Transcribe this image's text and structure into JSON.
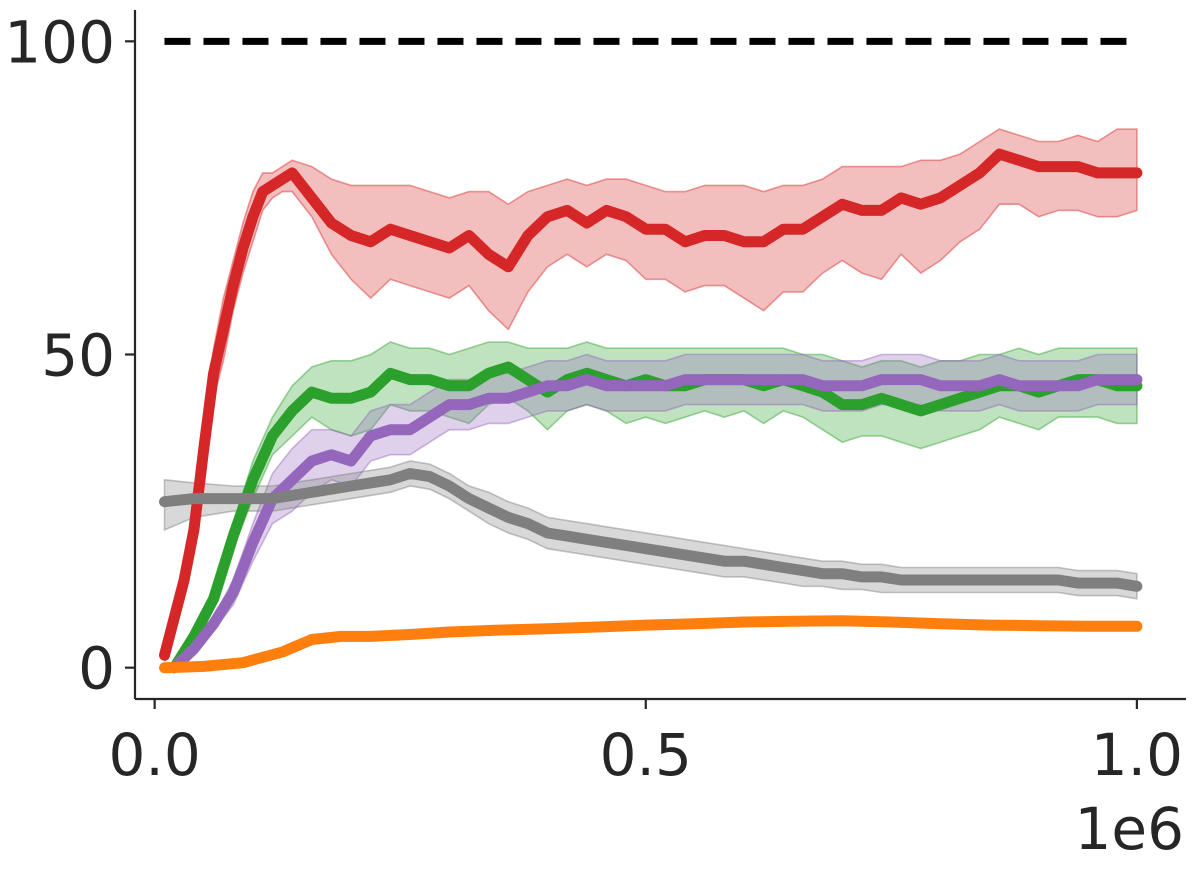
{
  "chart_data": {
    "type": "line",
    "title": "",
    "xlabel": "",
    "ylabel": "",
    "x_offset_label": "1e6",
    "xlim": [
      -0.02,
      1.05
    ],
    "ylim": [
      -5,
      105
    ],
    "x_ticks": [
      0.0,
      0.5,
      1.0
    ],
    "x_tick_labels": [
      "0.0",
      "0.5",
      "1.0"
    ],
    "y_ticks": [
      0,
      50,
      100
    ],
    "y_tick_labels": [
      "0",
      "50",
      "100"
    ],
    "grid": false,
    "reference_line": {
      "y": 100,
      "x_range": [
        0.01,
        1.0
      ],
      "color": "#000000",
      "style": "dashed"
    },
    "series": [
      {
        "color": "#d62728",
        "x": [
          0.01,
          0.02,
          0.03,
          0.04,
          0.05,
          0.06,
          0.07,
          0.08,
          0.09,
          0.1,
          0.11,
          0.12,
          0.13,
          0.14,
          0.16,
          0.18,
          0.2,
          0.22,
          0.24,
          0.26,
          0.28,
          0.3,
          0.32,
          0.34,
          0.36,
          0.38,
          0.4,
          0.42,
          0.44,
          0.46,
          0.48,
          0.5,
          0.52,
          0.54,
          0.56,
          0.58,
          0.6,
          0.62,
          0.64,
          0.66,
          0.68,
          0.7,
          0.72,
          0.74,
          0.76,
          0.78,
          0.8,
          0.82,
          0.84,
          0.86,
          0.88,
          0.9,
          0.92,
          0.94,
          0.96,
          0.98,
          1.0
        ],
        "y": [
          2,
          8,
          14,
          22,
          35,
          47,
          54,
          61,
          67,
          72,
          76,
          77,
          78,
          79,
          75,
          71,
          69,
          68,
          70,
          69,
          68,
          67,
          69,
          66,
          64,
          69,
          72,
          73,
          71,
          73,
          72,
          70,
          70,
          68,
          69,
          69,
          68,
          68,
          70,
          70,
          72,
          74,
          73,
          73,
          75,
          74,
          75,
          77,
          79,
          82,
          81,
          80,
          80,
          80,
          79,
          79,
          79
        ],
        "upper": [
          3,
          10,
          17,
          25,
          39,
          51,
          59,
          65,
          71,
          76,
          79,
          79,
          80,
          81,
          80,
          78,
          77,
          77,
          77,
          77,
          76,
          75,
          76,
          76,
          74,
          76,
          77,
          78,
          77,
          78,
          78,
          77,
          76,
          76,
          77,
          77,
          77,
          76,
          77,
          77,
          78,
          80,
          80,
          80,
          80,
          81,
          81,
          82,
          84,
          86,
          85,
          84,
          84,
          85,
          84,
          86,
          86
        ],
        "lower": [
          1,
          6,
          11,
          19,
          31,
          43,
          49,
          57,
          63,
          68,
          73,
          75,
          76,
          76,
          72,
          66,
          62,
          59,
          62,
          61,
          60,
          59,
          61,
          57,
          54,
          60,
          64,
          66,
          64,
          66,
          65,
          62,
          62,
          60,
          61,
          61,
          59,
          57,
          60,
          60,
          63,
          65,
          63,
          62,
          66,
          63,
          65,
          68,
          70,
          74,
          74,
          72,
          73,
          73,
          72,
          72,
          73
        ]
      },
      {
        "color": "#2ca02c",
        "x": [
          0.02,
          0.04,
          0.06,
          0.08,
          0.1,
          0.12,
          0.14,
          0.16,
          0.18,
          0.2,
          0.22,
          0.24,
          0.26,
          0.28,
          0.3,
          0.32,
          0.34,
          0.36,
          0.38,
          0.4,
          0.42,
          0.44,
          0.46,
          0.48,
          0.5,
          0.52,
          0.54,
          0.56,
          0.58,
          0.6,
          0.62,
          0.64,
          0.66,
          0.68,
          0.7,
          0.72,
          0.74,
          0.76,
          0.78,
          0.8,
          0.82,
          0.84,
          0.86,
          0.88,
          0.9,
          0.92,
          0.94,
          0.96,
          0.98,
          1.0
        ],
        "y": [
          0,
          5,
          11,
          21,
          30,
          37,
          41,
          44,
          43,
          43,
          44,
          47,
          46,
          46,
          45,
          45,
          47,
          48,
          46,
          44,
          46,
          47,
          46,
          45,
          46,
          45,
          45,
          46,
          46,
          46,
          45,
          46,
          45,
          44,
          42,
          42,
          43,
          42,
          41,
          42,
          43,
          44,
          45,
          45,
          44,
          45,
          46,
          46,
          45,
          45
        ],
        "upper": [
          1,
          6,
          12,
          23,
          33,
          40,
          45,
          48,
          49,
          49,
          50,
          52,
          51,
          51,
          50,
          51,
          52,
          52,
          51,
          51,
          51,
          52,
          51,
          51,
          51,
          51,
          51,
          51,
          51,
          51,
          51,
          51,
          50,
          50,
          49,
          48,
          49,
          49,
          48,
          49,
          49,
          50,
          50,
          51,
          50,
          51,
          51,
          51,
          51,
          51
        ],
        "lower": [
          0,
          4,
          10,
          19,
          27,
          34,
          37,
          40,
          38,
          37,
          38,
          42,
          41,
          41,
          40,
          39,
          42,
          43,
          41,
          38,
          41,
          42,
          41,
          39,
          40,
          39,
          40,
          41,
          40,
          41,
          39,
          41,
          40,
          38,
          36,
          37,
          37,
          36,
          35,
          36,
          37,
          38,
          40,
          39,
          38,
          40,
          40,
          40,
          39,
          39
        ]
      },
      {
        "color": "#9467bd",
        "x": [
          0.02,
          0.04,
          0.06,
          0.08,
          0.1,
          0.12,
          0.14,
          0.16,
          0.18,
          0.2,
          0.22,
          0.24,
          0.26,
          0.28,
          0.3,
          0.32,
          0.34,
          0.36,
          0.38,
          0.4,
          0.42,
          0.44,
          0.46,
          0.48,
          0.5,
          0.52,
          0.54,
          0.56,
          0.58,
          0.6,
          0.62,
          0.64,
          0.66,
          0.68,
          0.7,
          0.72,
          0.74,
          0.76,
          0.78,
          0.8,
          0.82,
          0.84,
          0.86,
          0.88,
          0.9,
          0.92,
          0.94,
          0.96,
          0.98,
          1.0
        ],
        "y": [
          0,
          3,
          7,
          12,
          20,
          27,
          30,
          33,
          34,
          33,
          37,
          38,
          38,
          40,
          42,
          42,
          43,
          43,
          44,
          45,
          45,
          46,
          45,
          45,
          45,
          45,
          46,
          46,
          46,
          46,
          46,
          46,
          46,
          45,
          45,
          45,
          46,
          46,
          46,
          45,
          45,
          45,
          46,
          45,
          45,
          45,
          45,
          46,
          46,
          46
        ],
        "upper": [
          1,
          4,
          8,
          14,
          23,
          31,
          35,
          38,
          38,
          37,
          41,
          42,
          42,
          44,
          46,
          46,
          47,
          47,
          48,
          49,
          49,
          50,
          49,
          49,
          49,
          49,
          50,
          50,
          50,
          50,
          50,
          50,
          50,
          49,
          49,
          49,
          50,
          50,
          50,
          49,
          49,
          49,
          50,
          49,
          49,
          49,
          49,
          50,
          50,
          50
        ],
        "lower": [
          0,
          2,
          6,
          10,
          17,
          23,
          25,
          28,
          30,
          29,
          33,
          34,
          34,
          36,
          38,
          38,
          39,
          39,
          40,
          41,
          41,
          42,
          41,
          41,
          41,
          41,
          42,
          42,
          42,
          42,
          42,
          42,
          42,
          41,
          41,
          41,
          42,
          42,
          42,
          41,
          41,
          41,
          42,
          41,
          41,
          41,
          41,
          42,
          42,
          42
        ]
      },
      {
        "color": "#7f7f7f",
        "x": [
          0.01,
          0.04,
          0.08,
          0.12,
          0.16,
          0.2,
          0.24,
          0.26,
          0.28,
          0.3,
          0.32,
          0.34,
          0.36,
          0.38,
          0.4,
          0.42,
          0.44,
          0.46,
          0.48,
          0.5,
          0.52,
          0.54,
          0.56,
          0.58,
          0.6,
          0.62,
          0.64,
          0.66,
          0.68,
          0.7,
          0.72,
          0.74,
          0.76,
          0.78,
          0.8,
          0.82,
          0.84,
          0.86,
          0.88,
          0.9,
          0.92,
          0.94,
          0.96,
          0.98,
          1.0
        ],
        "y": [
          26.5,
          27,
          27,
          27,
          28,
          29,
          30,
          31,
          30.5,
          29,
          27,
          25.5,
          24,
          23,
          21.5,
          21,
          20.5,
          20,
          19.5,
          19,
          18.5,
          18,
          17.5,
          17,
          17,
          16.5,
          16,
          15.5,
          15,
          15,
          14.5,
          14.5,
          14,
          14,
          14,
          14,
          14,
          14,
          14,
          14,
          14,
          13.5,
          13.5,
          13.5,
          13
        ],
        "upper": [
          30,
          29.5,
          29,
          29,
          30,
          31,
          32,
          33,
          32.5,
          31,
          29,
          28,
          26.5,
          25.5,
          24,
          23.5,
          23,
          22.5,
          22,
          21.5,
          21,
          20.5,
          20,
          19.5,
          19,
          18.5,
          18,
          17.5,
          17,
          17,
          16.5,
          16.5,
          16,
          16,
          16,
          16,
          16,
          16,
          16,
          16,
          16,
          15.5,
          15.5,
          15.5,
          15
        ],
        "lower": [
          22,
          24,
          25,
          25,
          26,
          27,
          28,
          29,
          28.5,
          27,
          25,
          23,
          21.5,
          20.5,
          19,
          18.5,
          18,
          17.5,
          17,
          16.5,
          16,
          15.5,
          15,
          14.5,
          14.5,
          14,
          13.5,
          13,
          13,
          12.5,
          12.5,
          12,
          12,
          12,
          12,
          12,
          12,
          12,
          12,
          12,
          12,
          11.5,
          11.5,
          11.5,
          11
        ]
      },
      {
        "color": "#ff7f0e",
        "x": [
          0.01,
          0.05,
          0.09,
          0.13,
          0.16,
          0.19,
          0.22,
          0.26,
          0.3,
          0.35,
          0.4,
          0.45,
          0.5,
          0.55,
          0.6,
          0.65,
          0.7,
          0.75,
          0.8,
          0.85,
          0.9,
          0.95,
          1.0
        ],
        "y": [
          0,
          0.2,
          0.8,
          2.5,
          4.5,
          5,
          5,
          5.3,
          5.7,
          6,
          6.2,
          6.5,
          6.8,
          7,
          7.3,
          7.4,
          7.5,
          7.3,
          7,
          6.8,
          6.7,
          6.6,
          6.6
        ],
        "upper": [
          0.5,
          0.7,
          1.3,
          3.1,
          5.1,
          5.6,
          5.6,
          5.9,
          6.3,
          6.6,
          6.8,
          7.1,
          7.4,
          7.6,
          7.9,
          8,
          8.1,
          7.9,
          7.6,
          7.4,
          7.3,
          7.2,
          7.2
        ],
        "lower": [
          -0.5,
          -0.3,
          0.3,
          1.9,
          3.9,
          4.4,
          4.4,
          4.7,
          5.1,
          5.4,
          5.6,
          5.9,
          6.2,
          6.4,
          6.7,
          6.8,
          6.9,
          6.7,
          6.4,
          6.2,
          6.1,
          6,
          6
        ]
      }
    ]
  }
}
